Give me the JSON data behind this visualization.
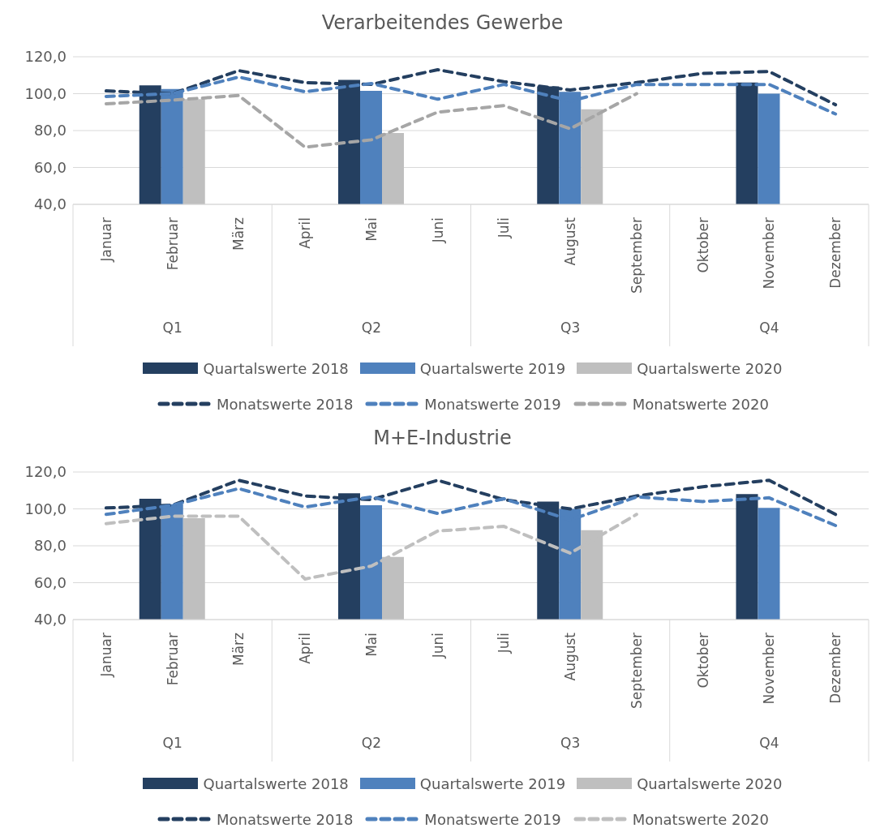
{
  "chart_data": [
    {
      "type": "bar",
      "title": "Verarbeitendes Gewerbe",
      "categories": [
        "Januar",
        "Februar",
        "März",
        "April",
        "Mai",
        "Juni",
        "Juli",
        "August",
        "September",
        "Oktober",
        "November",
        "Dezember"
      ],
      "series": [
        {
          "name": "Quartalswerte 2018",
          "color": "#243f60",
          "values": [
            null,
            104.5,
            null,
            null,
            107.5,
            null,
            null,
            104,
            null,
            null,
            106,
            null
          ]
        },
        {
          "name": "Quartalswerte 2019",
          "color": "#4f81bd",
          "values": [
            null,
            102.5,
            null,
            null,
            101.5,
            null,
            null,
            101,
            null,
            null,
            100,
            null
          ]
        },
        {
          "name": "Quartalswerte 2020",
          "color": "#bfbfbf",
          "values": [
            null,
            97,
            null,
            null,
            78.7,
            null,
            null,
            91.5,
            null,
            null,
            null,
            null
          ]
        },
        {
          "name": "Monatswerte 2018",
          "type": "line",
          "line_style": "dashed",
          "color": "#243f60",
          "values": [
            101.5,
            100,
            112.5,
            106,
            105,
            113,
            106.5,
            102,
            106,
            111,
            112,
            94
          ]
        },
        {
          "name": "Monatswerte 2019",
          "type": "line",
          "line_style": "dashed",
          "color": "#4f81bd",
          "values": [
            98.5,
            100,
            109,
            101,
            105.5,
            97,
            105,
            96,
            105,
            105,
            105,
            89
          ]
        },
        {
          "name": "Monatswerte 2020",
          "type": "line",
          "line_style": "dashed",
          "color": "#a6a6a6",
          "values": [
            94.5,
            96.5,
            99,
            71,
            75,
            90,
            93.5,
            81,
            100,
            null,
            null,
            null
          ]
        }
      ],
      "annotations": [
        "Q1",
        "Q2",
        "Q3",
        "Q4"
      ],
      "ylim": [
        40,
        120
      ],
      "yticks": [
        {
          "value": 40,
          "label": "40,0"
        },
        {
          "value": 60,
          "label": "60,0"
        },
        {
          "value": 80,
          "label": "80,0"
        },
        {
          "value": 100,
          "label": "100,0"
        },
        {
          "value": 120,
          "label": "120,0"
        }
      ],
      "grid": "y",
      "legend": "bottom"
    },
    {
      "type": "bar",
      "title": "M+E-Industrie",
      "categories": [
        "Januar",
        "Februar",
        "März",
        "April",
        "Mai",
        "Juni",
        "Juli",
        "August",
        "September",
        "Oktober",
        "November",
        "Dezember"
      ],
      "series": [
        {
          "name": "Quartalswerte 2018",
          "color": "#243f60",
          "values": [
            null,
            105.5,
            null,
            null,
            108.5,
            null,
            null,
            104,
            null,
            null,
            108,
            null
          ]
        },
        {
          "name": "Quartalswerte 2019",
          "color": "#4f81bd",
          "values": [
            null,
            102.5,
            null,
            null,
            102,
            null,
            null,
            100,
            null,
            null,
            100.5,
            null
          ]
        },
        {
          "name": "Quartalswerte 2020",
          "color": "#bfbfbf",
          "values": [
            null,
            95,
            null,
            null,
            74,
            null,
            null,
            88.5,
            null,
            null,
            null,
            null
          ]
        },
        {
          "name": "Monatswerte 2018",
          "type": "line",
          "line_style": "dashed",
          "color": "#243f60",
          "values": [
            100.5,
            102,
            115.5,
            107,
            105,
            115.5,
            105,
            100,
            107,
            112,
            115.5,
            97
          ]
        },
        {
          "name": "Monatswerte 2019",
          "type": "line",
          "line_style": "dashed",
          "color": "#4f81bd",
          "values": [
            97,
            102,
            111,
            101,
            106.5,
            97.5,
            105.5,
            94,
            106.5,
            104,
            106,
            91
          ]
        },
        {
          "name": "Monatswerte 2020",
          "type": "line",
          "line_style": "dashed",
          "color": "#bfbfbf",
          "values": [
            92,
            96,
            96,
            62,
            69,
            88,
            90.5,
            76,
            97,
            null,
            null,
            null
          ]
        }
      ],
      "annotations": [
        "Q1",
        "Q2",
        "Q3",
        "Q4"
      ],
      "ylim": [
        40,
        120
      ],
      "yticks": [
        {
          "value": 40,
          "label": "40,0"
        },
        {
          "value": 60,
          "label": "60,0"
        },
        {
          "value": 80,
          "label": "80,0"
        },
        {
          "value": 100,
          "label": "100,0"
        },
        {
          "value": 120,
          "label": "120,0"
        }
      ],
      "grid": "y",
      "legend": "bottom"
    }
  ]
}
